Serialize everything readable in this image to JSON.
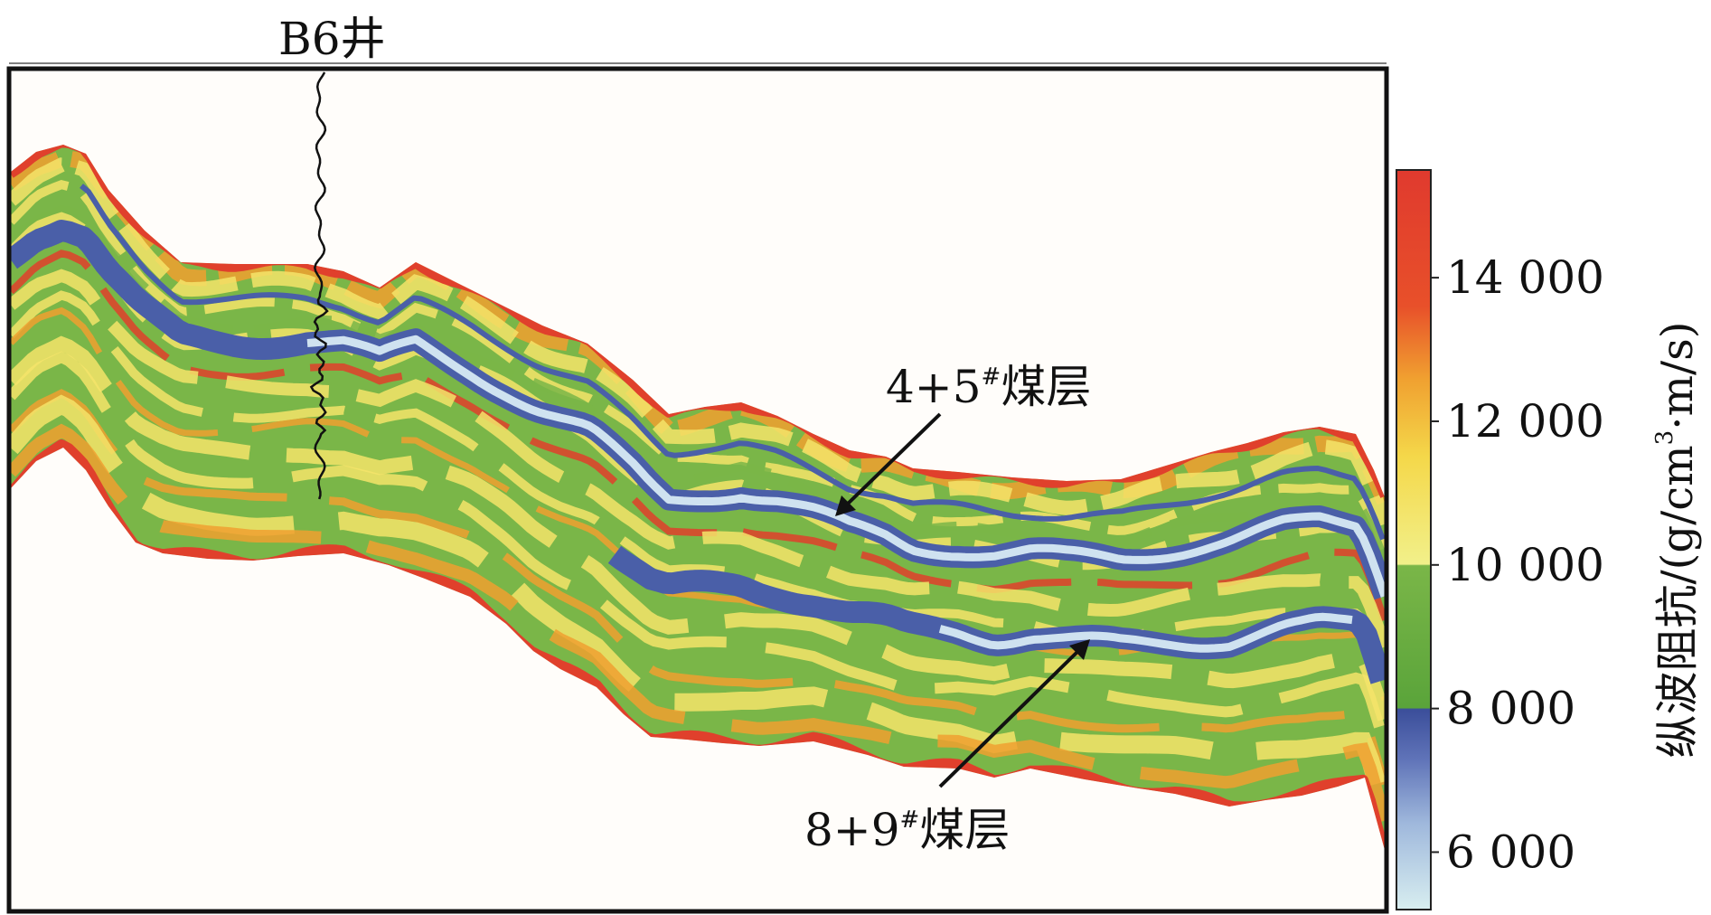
{
  "chart_data": {
    "type": "heatmap",
    "title": "",
    "well_label": "B6井",
    "annotations": [
      {
        "text": "4+5#煤层",
        "base": "4+5",
        "sup": "#",
        "suffix": "煤层"
      },
      {
        "text": "8+9#煤层",
        "base": "8+9",
        "sup": "#",
        "suffix": "煤层"
      }
    ],
    "colorbar": {
      "label": "纵波阻抗/(g/cm³·m/s)",
      "label_parts": {
        "prefix": "纵波阻抗/(g/cm",
        "sup": "3",
        "suffix": "·m/s)"
      },
      "min": 5200,
      "max": 15500,
      "ticks": [
        {
          "value": 6000,
          "label": "6 000"
        },
        {
          "value": 8000,
          "label": "8 000"
        },
        {
          "value": 10000,
          "label": "10 000"
        },
        {
          "value": 12000,
          "label": "12 000"
        },
        {
          "value": 14000,
          "label": "14 000"
        }
      ],
      "stops": [
        {
          "value": 5200,
          "color": "#d8eef0"
        },
        {
          "value": 6400,
          "color": "#9fb8dc"
        },
        {
          "value": 7300,
          "color": "#5f73b8"
        },
        {
          "value": 7990,
          "color": "#3b4e9a"
        },
        {
          "value": 8010,
          "color": "#5aa43a"
        },
        {
          "value": 9990,
          "color": "#7ab648"
        },
        {
          "value": 10010,
          "color": "#f2f08a"
        },
        {
          "value": 11500,
          "color": "#f4d84a"
        },
        {
          "value": 12600,
          "color": "#f0a030"
        },
        {
          "value": 13600,
          "color": "#e8502a"
        },
        {
          "value": 15500,
          "color": "#e03a2e"
        }
      ]
    },
    "colors": {
      "blue_band": "#4a5fa8",
      "blue_core": "#d6e6f2",
      "green": "#7ab648",
      "yellow": "#f4e46a",
      "orange": "#f0a030",
      "red": "#e0402c",
      "background": "#fffdfa"
    }
  }
}
